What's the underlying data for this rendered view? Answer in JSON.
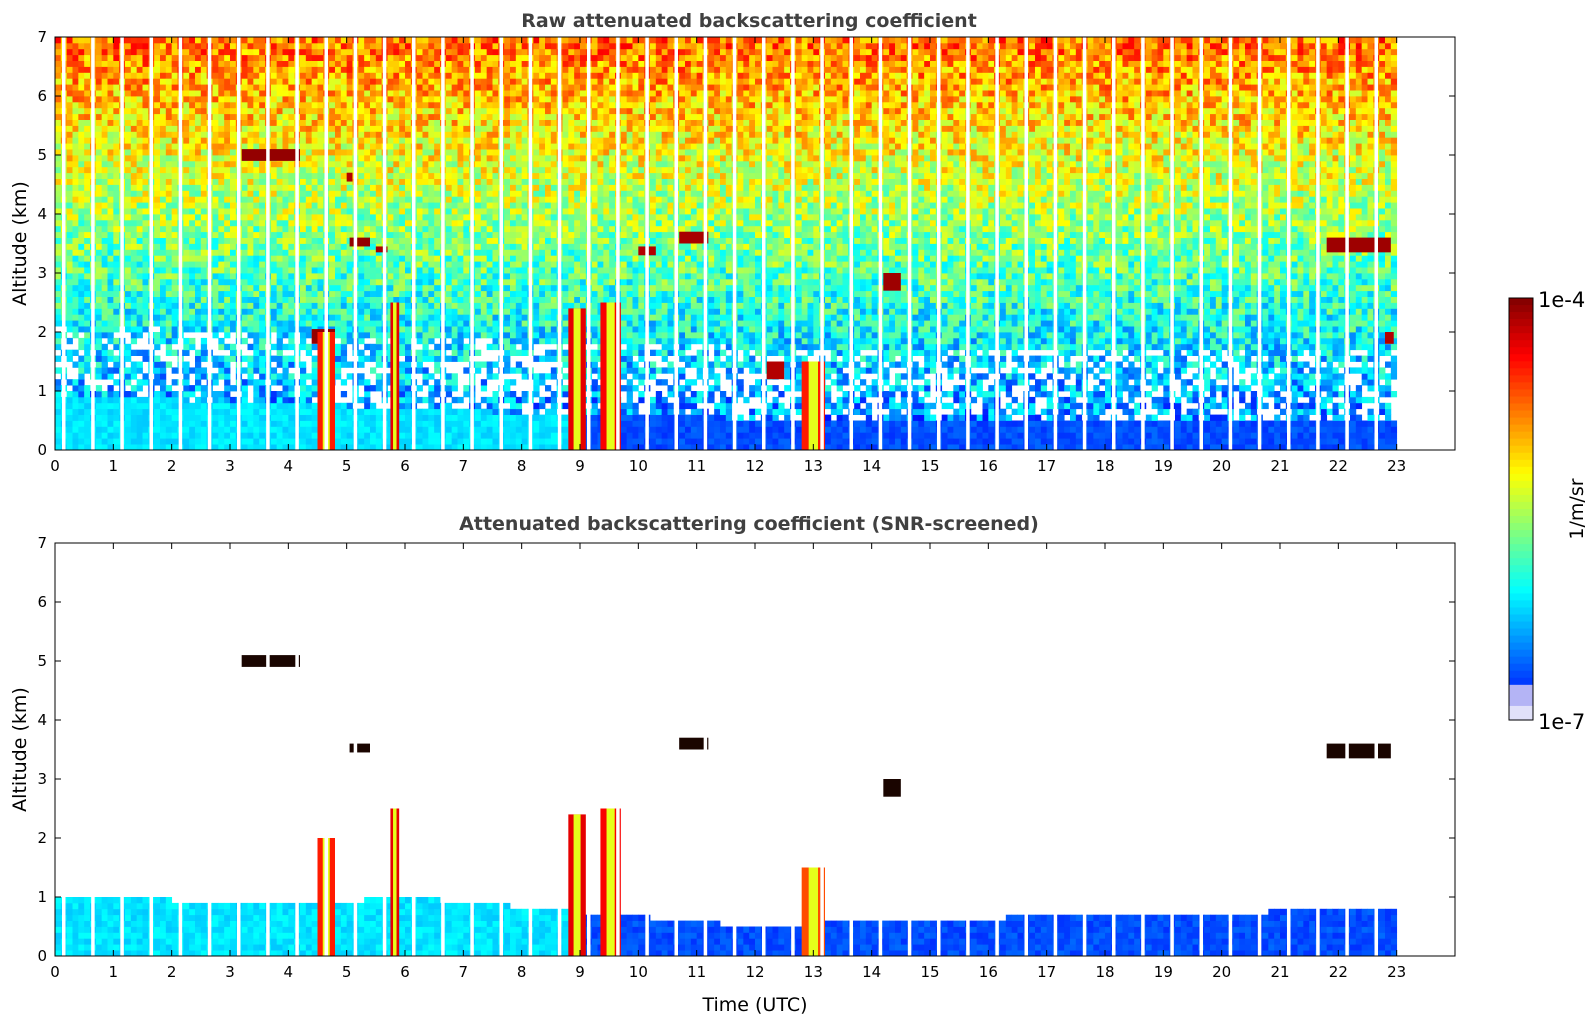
{
  "chart_data": [
    {
      "type": "heatmap",
      "title": "Raw attenuated backscattering coefficient",
      "xlabel": "",
      "ylabel": "Altitude (km)",
      "xlim": [
        0,
        24
      ],
      "ylim": [
        0,
        7
      ],
      "x_ticks": [
        "0",
        "1",
        "2",
        "3",
        "4",
        "5",
        "6",
        "7",
        "8",
        "9",
        "10",
        "11",
        "12",
        "13",
        "14",
        "15",
        "16",
        "17",
        "18",
        "19",
        "20",
        "21",
        "22",
        "23"
      ],
      "y_ticks": [
        "0",
        "1",
        "2",
        "3",
        "4",
        "5",
        "6",
        "7"
      ],
      "data_end_time": 23,
      "boundary_layer_top_km": [
        {
          "t": 0,
          "h": 0.9
        },
        {
          "t": 4,
          "h": 0.8
        },
        {
          "t": 6,
          "h": 0.7
        },
        {
          "t": 9,
          "h": 0.6
        },
        {
          "t": 14,
          "h": 0.5
        },
        {
          "t": 23,
          "h": 0.5
        }
      ],
      "features": [
        {
          "t0": 3.2,
          "t1": 4.2,
          "h0": 4.9,
          "h1": 5.1,
          "level": 0.98
        },
        {
          "t0": 5.0,
          "t1": 5.1,
          "h0": 4.55,
          "h1": 4.7,
          "level": 0.95
        },
        {
          "t0": 5.05,
          "t1": 5.4,
          "h0": 3.45,
          "h1": 3.6,
          "level": 0.98
        },
        {
          "t0": 5.5,
          "t1": 5.7,
          "h0": 3.35,
          "h1": 3.45,
          "level": 0.96
        },
        {
          "t0": 10.0,
          "t1": 10.3,
          "h0": 3.3,
          "h1": 3.45,
          "level": 0.95
        },
        {
          "t0": 10.7,
          "t1": 11.2,
          "h0": 3.5,
          "h1": 3.7,
          "level": 0.96
        },
        {
          "t0": 14.2,
          "t1": 14.5,
          "h0": 2.7,
          "h1": 3.0,
          "level": 0.97
        },
        {
          "t0": 21.8,
          "t1": 22.9,
          "h0": 3.35,
          "h1": 3.6,
          "level": 0.97
        },
        {
          "t0": 4.4,
          "t1": 4.8,
          "h0": 1.8,
          "h1": 2.05,
          "level": 0.98
        },
        {
          "t0": 4.5,
          "t1": 4.8,
          "h0": 0.0,
          "h1": 2.0,
          "level": 0.85
        },
        {
          "t0": 5.75,
          "t1": 5.9,
          "h0": 0.0,
          "h1": 2.5,
          "level": 0.9
        },
        {
          "t0": 8.8,
          "t1": 9.1,
          "h0": 0.0,
          "h1": 2.4,
          "level": 0.9
        },
        {
          "t0": 9.35,
          "t1": 9.7,
          "h0": 0.0,
          "h1": 2.5,
          "level": 0.88
        },
        {
          "t0": 12.8,
          "t1": 13.2,
          "h0": 0.0,
          "h1": 1.5,
          "level": 0.85
        },
        {
          "t0": 12.2,
          "t1": 12.5,
          "h0": 1.2,
          "h1": 1.5,
          "level": 0.95
        },
        {
          "t0": 22.8,
          "t1": 22.95,
          "h0": 1.8,
          "h1": 2.0,
          "level": 0.95
        }
      ]
    },
    {
      "type": "heatmap",
      "title": "Attenuated backscattering coefficient (SNR-screened)",
      "xlabel": "Time (UTC)",
      "ylabel": "Altitude (km)",
      "xlim": [
        0,
        24
      ],
      "ylim": [
        0,
        7
      ],
      "x_ticks": [
        "0",
        "1",
        "2",
        "3",
        "4",
        "5",
        "6",
        "7",
        "8",
        "9",
        "10",
        "11",
        "12",
        "13",
        "14",
        "15",
        "16",
        "17",
        "18",
        "19",
        "20",
        "21",
        "22",
        "23"
      ],
      "y_ticks": [
        "0",
        "1",
        "2",
        "3",
        "4",
        "5",
        "6",
        "7"
      ],
      "data_end_time": 23,
      "boundary_layer_top_km": [
        {
          "t": 0,
          "h": 1.05
        },
        {
          "t": 4,
          "h": 0.85
        },
        {
          "t": 6,
          "h": 1.0
        },
        {
          "t": 9,
          "h": 0.75
        },
        {
          "t": 12,
          "h": 0.5
        },
        {
          "t": 14,
          "h": 0.6
        },
        {
          "t": 23,
          "h": 0.8
        }
      ],
      "features": [
        {
          "t0": 3.2,
          "t1": 4.2,
          "h0": 4.9,
          "h1": 5.1,
          "level": 1.0
        },
        {
          "t0": 5.05,
          "t1": 5.4,
          "h0": 3.45,
          "h1": 3.6,
          "level": 1.0
        },
        {
          "t0": 10.7,
          "t1": 11.2,
          "h0": 3.5,
          "h1": 3.7,
          "level": 1.0
        },
        {
          "t0": 14.2,
          "t1": 14.5,
          "h0": 2.7,
          "h1": 3.0,
          "level": 1.0
        },
        {
          "t0": 21.8,
          "t1": 22.9,
          "h0": 3.35,
          "h1": 3.6,
          "level": 1.0
        },
        {
          "t0": 4.5,
          "t1": 4.8,
          "h0": 0.0,
          "h1": 2.0,
          "level": 0.85
        },
        {
          "t0": 5.75,
          "t1": 5.9,
          "h0": 0.0,
          "h1": 2.5,
          "level": 0.9
        },
        {
          "t0": 8.8,
          "t1": 9.1,
          "h0": 0.0,
          "h1": 2.4,
          "level": 0.9
        },
        {
          "t0": 9.35,
          "t1": 9.7,
          "h0": 0.0,
          "h1": 2.5,
          "level": 0.88
        },
        {
          "t0": 12.8,
          "t1": 13.2,
          "h0": 0.0,
          "h1": 1.5,
          "level": 0.8
        }
      ]
    }
  ],
  "colorbar": {
    "max_label": "1e-4",
    "min_label": "1e-7",
    "unit_label": "1/m/sr",
    "colormap": "jet"
  }
}
